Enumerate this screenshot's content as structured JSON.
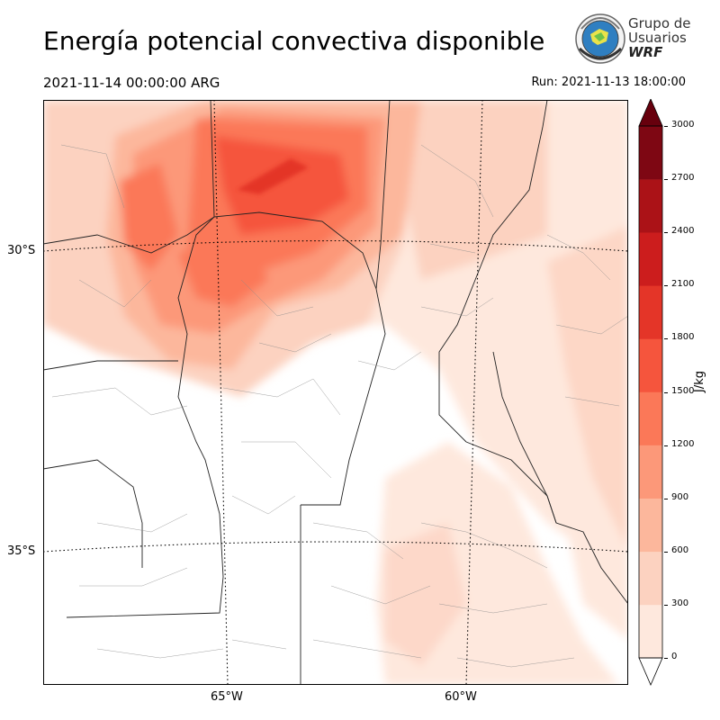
{
  "title": "Energía potencial convectiva disponible",
  "valid_time": "2021-11-14 00:00:00 ARG",
  "run_time": "Run: 2021-11-13 18:00:00",
  "logo": {
    "line1": "Grupo de",
    "line2": "Usuarios",
    "line3": "WRF"
  },
  "map": {
    "lat_labels": [
      "30°S",
      "35°S"
    ],
    "lon_labels": [
      "65°W",
      "60°W"
    ]
  },
  "colorbar": {
    "unit": "J/kg",
    "ticks": [
      "3000",
      "2700",
      "2400",
      "2100",
      "1800",
      "1500",
      "1200",
      "900",
      "600",
      "300",
      "0"
    ],
    "colors": [
      "#fee8dd",
      "#fcd2c0",
      "#fcb79c",
      "#fc9879",
      "#fb7858",
      "#f5553d",
      "#e43528",
      "#cc1d1d",
      "#ab1217",
      "#7e0713"
    ],
    "over_color": "#67000d",
    "under_color": "#ffffff"
  }
}
